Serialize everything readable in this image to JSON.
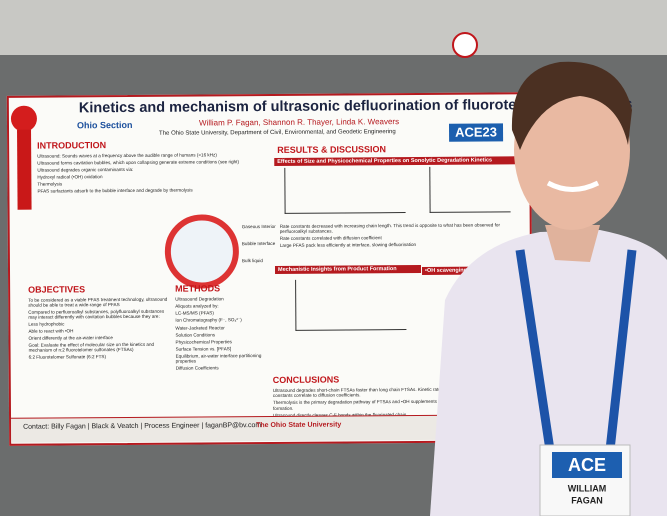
{
  "poster": {
    "title": "Kinetics and mechanism of ultrasonic defluorination of fluorotelomer sulfonates",
    "authors": "William P. Fagan, Shannon R. Thayer, Linda K. Weavers",
    "affiliation": "The Ohio State University, Department of Civil, Environmental, and Geodetic Engineering",
    "logo": "Ohio Section",
    "event": "ACE23",
    "introduction": {
      "heading": "INTRODUCTION",
      "lines": [
        "Ultrasound: Sounds waves at a frequency above the audible range of humans (>16 kHz)",
        "Ultrasound forms cavitation bubbles, which upon collapsing generate extreme conditions (see right)",
        "Ultrasound degrades organic contaminants via:",
        "Hydroxyl radical (•OH) oxidation",
        "Thermolysis",
        "PFAS surfactants adsorb to the bubble interface and degrade by thermolysis"
      ],
      "diagram": [
        "Gaseous Interior",
        "Bubble Interface",
        "Bulk liquid"
      ]
    },
    "results": {
      "heading": "RESULTS & DISCUSSION",
      "panel1": "Effects of Size and Physicochemical Properties on Sonolytic Degradation Kinetics",
      "panel2": "Mechanistic Insights from Product Formation",
      "panel3": "•OH scavenging tests",
      "notes": [
        "Rate constants decreased with increasing chain length. This trend is opposite to what has been observed for perfluoroalkyl substances.",
        "Rate constants correlated with diffusion coefficient",
        "Large PFAS pack less efficiently at interface, slowing defluorination"
      ]
    },
    "objectives": {
      "heading": "OBJECTIVES",
      "lines": [
        "To be considered as a viable PFAS treatment technology, ultrasound should be able to treat a wide-range of PFAS",
        "Compared to perfluoroalkyl substances, polyfluoroalkyl substances may interact differently with cavitation bubbles because they are:",
        "Less hydrophobic",
        "Able to react with •OH",
        "Orient differently at the air-water interface",
        "Goal: Evaluate the effect of molecular size on the kinetics and mechanism of n:2 fluorotelomer sulfonates (FTSAs)",
        "6:2 Fluorotelomer Sulfonate (6:2 FTS)"
      ]
    },
    "methods": {
      "heading": "METHODS",
      "lines": [
        "Ultrasound Degradation",
        "Aliquots analyzed by:",
        "LC-MS/MS (PFAS)",
        "Ion Chromatography (F⁻, SO₄²⁻)",
        "Water-Jacketed Reactor",
        "Solution Conditions",
        "Physicochemical Properties",
        "Surface Tension vs. [PFAS]",
        "Equilibrium, air-water interface partitioning properties",
        "Diffusion Coefficients"
      ]
    },
    "conclusions": {
      "heading": "CONCLUSIONS",
      "lines": [
        "Ultrasound degrades short-chain FTSAs faster than long chain FTSAs. Kinetic rate constants correlate to diffusion coefficients.",
        "Thermolysis is the primary degradation pathway of FTSAs and •OH supplements SO₄²⁻ formation.",
        "Ultrasound directly cleaves C-F bonds within the fluorinated chain."
      ]
    },
    "contact": "Contact: Billy Fagan | Black & Veatch | Process Engineer | faganBP@bv.com",
    "university": "The Ohio State University"
  },
  "badge": {
    "event": "ACE",
    "first": "WILLIAM",
    "last": "FAGAN"
  }
}
